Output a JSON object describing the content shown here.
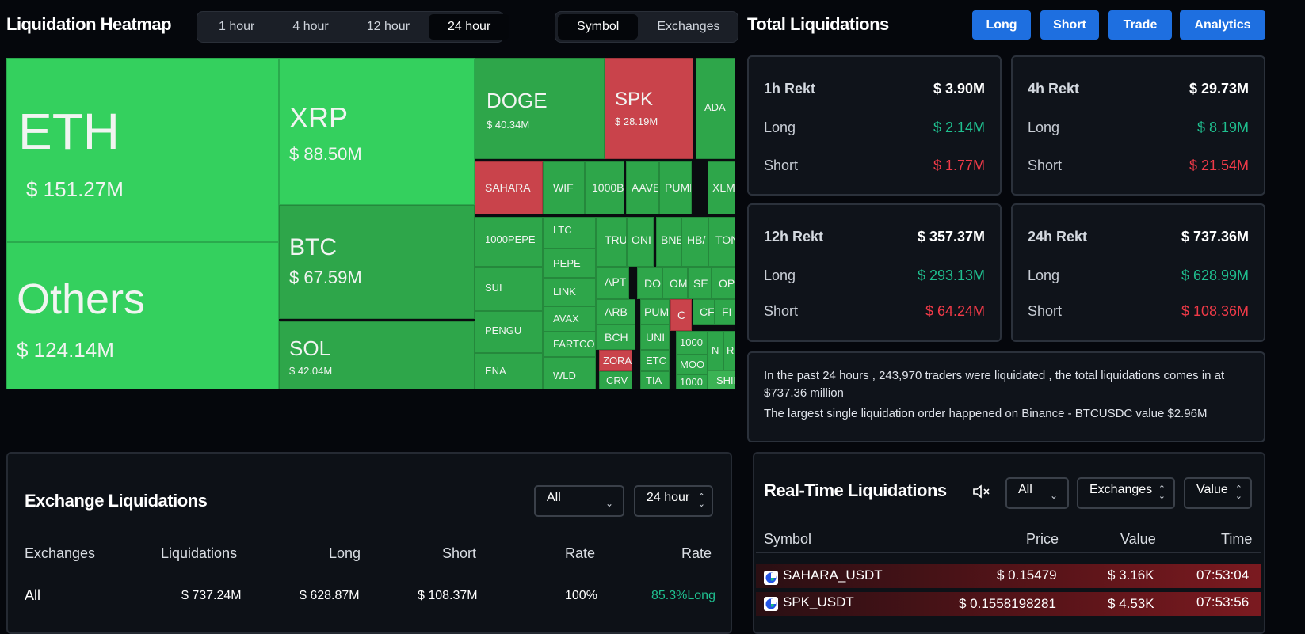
{
  "heatmap": {
    "title": "Liquidation Heatmap",
    "time_tabs": [
      "1 hour",
      "4 hour",
      "12 hour",
      "24 hour"
    ],
    "active_time_tab": "24 hour",
    "view_tabs": [
      "Symbol",
      "Exchanges"
    ],
    "active_view_tab": "Symbol",
    "tiles": [
      {
        "sym": "ETH",
        "val": "$ 151.27M",
        "color": "#34d05e"
      },
      {
        "sym": "Others",
        "val": "$ 124.14M",
        "color": "#34d05e"
      },
      {
        "sym": "XRP",
        "val": "$ 88.50M",
        "color": "#34d05e"
      },
      {
        "sym": "BTC",
        "val": "$ 67.59M",
        "color": "#2ea64a"
      },
      {
        "sym": "SOL",
        "val": "$ 42.04M",
        "color": "#2ea64a"
      },
      {
        "sym": "DOGE",
        "val": "$ 40.34M",
        "color": "#2ea64a"
      },
      {
        "sym": "SPK",
        "val": "$ 28.19M",
        "color": "#c9434b"
      },
      {
        "sym": "ADA",
        "val": "",
        "color": "#2ea64a"
      },
      {
        "sym": "SAHARA",
        "val": "",
        "color": "#c9434b"
      },
      {
        "sym": "WIF",
        "val": "",
        "color": "#2ea64a"
      },
      {
        "sym": "1000B",
        "val": "",
        "color": "#2ea64a"
      },
      {
        "sym": "AAVE",
        "val": "",
        "color": "#2ea64a"
      },
      {
        "sym": "PUMP",
        "val": "",
        "color": "#2ea64a"
      },
      {
        "sym": "XLM",
        "val": "",
        "color": "#2ea64a"
      },
      {
        "sym": "1000PEPE",
        "val": "",
        "color": "#2ea64a"
      },
      {
        "sym": "LTC",
        "val": "",
        "color": "#2ea64a"
      },
      {
        "sym": "TRU",
        "val": "",
        "color": "#2ea64a"
      },
      {
        "sym": "ONI",
        "val": "",
        "color": "#2ea64a"
      },
      {
        "sym": "BNE",
        "val": "",
        "color": "#2ea64a"
      },
      {
        "sym": "HB/",
        "val": "",
        "color": "#2ea64a"
      },
      {
        "sym": "TON",
        "val": "",
        "color": "#2ea64a"
      },
      {
        "sym": "SUI",
        "val": "",
        "color": "#2ea64a"
      },
      {
        "sym": "PEPE",
        "val": "",
        "color": "#2ea64a"
      },
      {
        "sym": "APT",
        "val": "",
        "color": "#2ea64a"
      },
      {
        "sym": "DO",
        "val": "",
        "color": "#2ea64a"
      },
      {
        "sym": "OM",
        "val": "",
        "color": "#2ea64a"
      },
      {
        "sym": "SE",
        "val": "",
        "color": "#2ea64a"
      },
      {
        "sym": "OP",
        "val": "",
        "color": "#2ea64a"
      },
      {
        "sym": "LINK",
        "val": "",
        "color": "#2ea64a"
      },
      {
        "sym": "ARB",
        "val": "",
        "color": "#2ea64a"
      },
      {
        "sym": "PUM",
        "val": "",
        "color": "#2ea64a"
      },
      {
        "sym": "C",
        "val": "",
        "color": "#c9434b"
      },
      {
        "sym": "CF",
        "val": "",
        "color": "#2ea64a"
      },
      {
        "sym": "FI",
        "val": "",
        "color": "#2ea64a"
      },
      {
        "sym": "PENGU",
        "val": "",
        "color": "#2ea64a"
      },
      {
        "sym": "AVAX",
        "val": "",
        "color": "#2ea64a"
      },
      {
        "sym": "BCH",
        "val": "",
        "color": "#2ea64a"
      },
      {
        "sym": "UNI",
        "val": "",
        "color": "#2ea64a"
      },
      {
        "sym": "1000",
        "val": "",
        "color": "#2ea64a"
      },
      {
        "sym": "N",
        "val": "",
        "color": "#2ea64a"
      },
      {
        "sym": "R",
        "val": "",
        "color": "#2ea64a"
      },
      {
        "sym": "FARTCOI",
        "val": "",
        "color": "#2ea64a"
      },
      {
        "sym": "ZORA",
        "val": "",
        "color": "#c9434b"
      },
      {
        "sym": "ETC",
        "val": "",
        "color": "#2ea64a"
      },
      {
        "sym": "MOO",
        "val": "",
        "color": "#2ea64a"
      },
      {
        "sym": "ENA",
        "val": "",
        "color": "#2ea64a"
      },
      {
        "sym": "WLD",
        "val": "",
        "color": "#2ea64a"
      },
      {
        "sym": "CRV",
        "val": "",
        "color": "#2ea64a"
      },
      {
        "sym": "TIA",
        "val": "",
        "color": "#2ea64a"
      },
      {
        "sym": "1000",
        "val": "",
        "color": "#2ea64a"
      },
      {
        "sym": "SHIB",
        "val": "",
        "color": "#3bb354"
      }
    ]
  },
  "total": {
    "title": "Total Liquidations",
    "buttons": [
      "Long",
      "Short",
      "Trade",
      "Analytics"
    ],
    "cards": [
      {
        "label": "1h Rekt",
        "total": "$ 3.90M",
        "long_label": "Long",
        "long": "$ 2.14M",
        "short_label": "Short",
        "short": "$ 1.77M"
      },
      {
        "label": "4h Rekt",
        "total": "$ 29.73M",
        "long_label": "Long",
        "long": "$ 8.19M",
        "short_label": "Short",
        "short": "$ 21.54M"
      },
      {
        "label": "12h Rekt",
        "total": "$ 357.37M",
        "long_label": "Long",
        "long": "$ 293.13M",
        "short_label": "Short",
        "short": "$ 64.24M"
      },
      {
        "label": "24h Rekt",
        "total": "$ 737.36M",
        "long_label": "Long",
        "long": "$ 628.99M",
        "short_label": "Short",
        "short": "$ 108.36M"
      }
    ],
    "info_line1": "In the past 24 hours , 243,970 traders were liquidated , the total liquidations comes in at $737.36 million",
    "info_line2": "The largest single liquidation order happened on Binance - BTCUSDC value $2.96M"
  },
  "exchange": {
    "title": "Exchange Liquidations",
    "filter1": "All",
    "filter2": "24 hour",
    "headers": [
      "Exchanges",
      "Liquidations",
      "Long",
      "Short",
      "Rate",
      "Rate"
    ],
    "rows": [
      {
        "exchange": "All",
        "liquidations": "$ 737.24M",
        "long": "$ 628.87M",
        "short": "$ 108.37M",
        "rate": "100%",
        "rate2": "85.3%Long"
      }
    ]
  },
  "realtime": {
    "title": "Real-Time Liquidations",
    "filter1": "All",
    "filter2": "Exchanges",
    "filter3": "Value",
    "headers": [
      "Symbol",
      "Price",
      "Value",
      "Time"
    ],
    "rows": [
      {
        "symbol": "SAHARA_USDT",
        "price": "$ 0.15479",
        "value": "$ 3.16K",
        "time": "07:53:04"
      },
      {
        "symbol": "SPK_USDT",
        "price": "$ 0.1558198281",
        "value": "$ 4.53K",
        "time": "07:53:56"
      }
    ]
  },
  "colors": {
    "long": "#1fbf8f",
    "short": "#f03a48",
    "accent": "#1e6fe0",
    "heat_green": "#34d05e",
    "heat_red": "#c9434b"
  }
}
